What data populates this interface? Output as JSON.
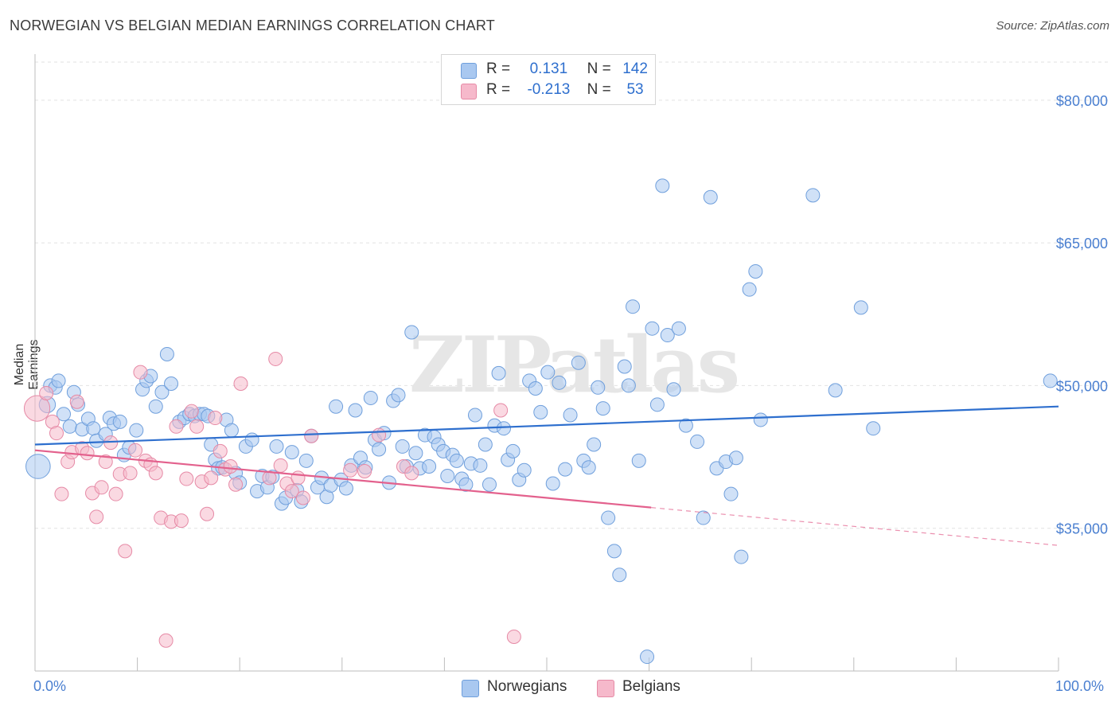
{
  "header": {
    "title": "NORWEGIAN VS BELGIAN MEDIAN EARNINGS CORRELATION CHART",
    "source": "Source: ZipAtlas.com"
  },
  "colors": {
    "blue_fill": "#a9c8f0",
    "blue_stroke": "#6f9fdc",
    "blue_line": "#2e6fce",
    "pink_fill": "#f6b9cb",
    "pink_stroke": "#e68aa6",
    "pink_line": "#e3618d",
    "accent_text": "#4a7fd0"
  },
  "legend_box": {
    "rows": [
      {
        "r_label": "R =",
        "r_value": "0.131",
        "n_label": "N =",
        "n_value": "142"
      },
      {
        "r_label": "R =",
        "r_value": "-0.213",
        "n_label": "N =",
        "n_value": "53"
      }
    ]
  },
  "bottom_legend": {
    "items": [
      {
        "label": "Norwegians"
      },
      {
        "label": "Belgians"
      }
    ]
  },
  "watermark": "ZIPatlas",
  "chart_data": {
    "type": "scatter",
    "title": "NORWEGIAN VS BELGIAN MEDIAN EARNINGS CORRELATION CHART",
    "xlabel": "",
    "ylabel": "Median Earnings",
    "xlim": [
      0,
      100
    ],
    "ylim": [
      20000,
      84000
    ],
    "x_tick_labels": [
      "0.0%",
      "100.0%"
    ],
    "y_ticks": [
      35000,
      50000,
      65000,
      80000
    ],
    "y_tick_labels": [
      "$35,000",
      "$50,000",
      "$65,000",
      "$80,000"
    ],
    "legend_position": "top-center",
    "grid": true,
    "series": [
      {
        "name": "Norwegians",
        "R": 0.131,
        "N": 142,
        "trend": {
          "x0": 0,
          "y0": 43800,
          "x1": 100,
          "y1": 47800,
          "dashed_from": null
        },
        "points": [
          [
            0.3,
            41500,
            1.8
          ],
          [
            1.2,
            48000,
            1.2
          ],
          [
            1.5,
            50000,
            1
          ],
          [
            2.0,
            49800,
            1
          ],
          [
            2.3,
            50500,
            1
          ],
          [
            2.8,
            47000,
            1
          ],
          [
            3.4,
            45700,
            1
          ],
          [
            3.8,
            49300,
            1
          ],
          [
            4.2,
            48000,
            1
          ],
          [
            4.6,
            45400,
            1
          ],
          [
            5.2,
            46500,
            1
          ],
          [
            5.7,
            45500,
            1
          ],
          [
            6.0,
            44200,
            1
          ],
          [
            6.9,
            44900,
            1
          ],
          [
            7.3,
            46600,
            1
          ],
          [
            7.7,
            46000,
            1
          ],
          [
            8.3,
            46200,
            1
          ],
          [
            8.7,
            42700,
            1
          ],
          [
            9.2,
            43500,
            1
          ],
          [
            9.9,
            45300,
            1
          ],
          [
            10.5,
            49600,
            1
          ],
          [
            10.9,
            50500,
            1
          ],
          [
            11.3,
            51000,
            1
          ],
          [
            11.8,
            47800,
            1
          ],
          [
            12.4,
            49300,
            1
          ],
          [
            12.9,
            53300,
            1
          ],
          [
            13.3,
            50200,
            1
          ],
          [
            14.1,
            46200,
            1
          ],
          [
            14.6,
            46600,
            1
          ],
          [
            15.1,
            47000,
            1
          ],
          [
            15.6,
            46800,
            1
          ],
          [
            16.1,
            47000,
            1
          ],
          [
            16.5,
            47000,
            1
          ],
          [
            16.9,
            46800,
            1
          ],
          [
            17.2,
            43800,
            1
          ],
          [
            17.6,
            42200,
            1
          ],
          [
            17.9,
            41300,
            1
          ],
          [
            18.3,
            41400,
            1
          ],
          [
            18.7,
            46400,
            1
          ],
          [
            19.2,
            45300,
            1
          ],
          [
            19.6,
            40800,
            1
          ],
          [
            20.0,
            39800,
            1
          ],
          [
            20.6,
            43600,
            1
          ],
          [
            21.2,
            44300,
            1
          ],
          [
            21.7,
            38900,
            1
          ],
          [
            22.2,
            40500,
            1
          ],
          [
            22.7,
            39300,
            1
          ],
          [
            23.2,
            40400,
            1
          ],
          [
            23.6,
            43600,
            1
          ],
          [
            24.1,
            37600,
            1
          ],
          [
            24.5,
            38200,
            1
          ],
          [
            25.1,
            43000,
            1
          ],
          [
            25.6,
            39000,
            1
          ],
          [
            26.0,
            37800,
            1
          ],
          [
            26.5,
            42100,
            1
          ],
          [
            27.0,
            44700,
            1
          ],
          [
            27.6,
            39300,
            1
          ],
          [
            28.0,
            40300,
            1
          ],
          [
            28.5,
            38300,
            1
          ],
          [
            28.9,
            39500,
            1
          ],
          [
            29.4,
            47800,
            1
          ],
          [
            29.9,
            40100,
            1
          ],
          [
            30.4,
            39200,
            1
          ],
          [
            30.9,
            41600,
            1
          ],
          [
            31.3,
            47400,
            1
          ],
          [
            31.8,
            42400,
            1
          ],
          [
            32.3,
            41400,
            1
          ],
          [
            32.8,
            48700,
            1
          ],
          [
            33.2,
            44300,
            1
          ],
          [
            33.6,
            43300,
            1
          ],
          [
            34.1,
            45000,
            1
          ],
          [
            34.6,
            39800,
            1
          ],
          [
            35.0,
            48400,
            1
          ],
          [
            35.5,
            49000,
            1
          ],
          [
            35.9,
            43600,
            1
          ],
          [
            36.3,
            41500,
            1
          ],
          [
            36.8,
            55600,
            1
          ],
          [
            37.2,
            42900,
            1
          ],
          [
            37.6,
            41300,
            1
          ],
          [
            38.1,
            44800,
            1
          ],
          [
            38.5,
            41500,
            1
          ],
          [
            39.0,
            44600,
            1
          ],
          [
            39.4,
            43800,
            1
          ],
          [
            39.9,
            43100,
            1
          ],
          [
            40.3,
            40500,
            1
          ],
          [
            40.8,
            42700,
            1
          ],
          [
            41.2,
            42100,
            1
          ],
          [
            41.7,
            40200,
            1
          ],
          [
            42.1,
            39600,
            1
          ],
          [
            42.6,
            41800,
            1
          ],
          [
            43.0,
            46900,
            1
          ],
          [
            43.5,
            41600,
            1
          ],
          [
            44.0,
            43800,
            1
          ],
          [
            44.4,
            39600,
            1
          ],
          [
            44.9,
            45800,
            1
          ],
          [
            45.3,
            51300,
            1
          ],
          [
            45.8,
            45500,
            1
          ],
          [
            46.2,
            42200,
            1
          ],
          [
            46.7,
            43100,
            1
          ],
          [
            47.3,
            40100,
            1
          ],
          [
            47.8,
            41100,
            1
          ],
          [
            48.3,
            50500,
            1
          ],
          [
            48.9,
            49700,
            1
          ],
          [
            49.4,
            47200,
            1
          ],
          [
            50.1,
            51400,
            1
          ],
          [
            50.6,
            39700,
            1
          ],
          [
            51.2,
            50300,
            1
          ],
          [
            51.8,
            41200,
            1
          ],
          [
            52.3,
            46900,
            1
          ],
          [
            53.1,
            52400,
            1
          ],
          [
            53.6,
            42100,
            1
          ],
          [
            54.1,
            41400,
            1
          ],
          [
            54.6,
            43800,
            1
          ],
          [
            55.0,
            49800,
            1
          ],
          [
            55.5,
            47600,
            1
          ],
          [
            56.0,
            36100,
            1
          ],
          [
            56.6,
            32600,
            1
          ],
          [
            57.1,
            30100,
            1
          ],
          [
            57.6,
            52000,
            1
          ],
          [
            58.0,
            50000,
            1
          ],
          [
            58.4,
            58300,
            1
          ],
          [
            59.0,
            42100,
            1
          ],
          [
            59.8,
            21500,
            1
          ],
          [
            60.3,
            56000,
            1
          ],
          [
            60.8,
            48000,
            1
          ],
          [
            61.3,
            71000,
            1
          ],
          [
            61.8,
            55300,
            1
          ],
          [
            62.4,
            49600,
            1
          ],
          [
            62.9,
            56000,
            1
          ],
          [
            63.6,
            45800,
            1
          ],
          [
            64.7,
            44100,
            1
          ],
          [
            65.3,
            36100,
            1
          ],
          [
            66.0,
            69800,
            1
          ],
          [
            66.6,
            41300,
            1
          ],
          [
            67.5,
            42000,
            1
          ],
          [
            68.0,
            38600,
            1
          ],
          [
            68.5,
            42400,
            1
          ],
          [
            69.0,
            32000,
            1
          ],
          [
            69.8,
            60100,
            1
          ],
          [
            70.4,
            62000,
            1
          ],
          [
            70.9,
            46400,
            1
          ],
          [
            76.0,
            70000,
            1
          ],
          [
            78.2,
            49500,
            1
          ],
          [
            80.7,
            58200,
            1
          ],
          [
            81.9,
            45500,
            1
          ],
          [
            99.2,
            50500,
            1
          ]
        ]
      },
      {
        "name": "Belgians",
        "R": -0.213,
        "N": 53,
        "trend": {
          "x0": 0,
          "y0": 43200,
          "x1": 100,
          "y1": 33200,
          "dashed_from": 60.2
        },
        "points": [
          [
            0.2,
            47600,
            1.9
          ],
          [
            1.1,
            49200,
            1
          ],
          [
            1.7,
            46200,
            1
          ],
          [
            2.1,
            45000,
            1
          ],
          [
            2.6,
            38600,
            1
          ],
          [
            3.2,
            42000,
            1
          ],
          [
            3.6,
            43000,
            1
          ],
          [
            4.1,
            48300,
            1
          ],
          [
            4.6,
            43400,
            1
          ],
          [
            5.1,
            42900,
            1
          ],
          [
            5.6,
            38700,
            1
          ],
          [
            6.0,
            36200,
            1
          ],
          [
            6.5,
            39300,
            1
          ],
          [
            6.9,
            42000,
            1
          ],
          [
            7.4,
            44000,
            1
          ],
          [
            7.9,
            38600,
            1
          ],
          [
            8.3,
            40700,
            1
          ],
          [
            8.8,
            32600,
            1
          ],
          [
            9.3,
            40800,
            1
          ],
          [
            9.8,
            43200,
            1
          ],
          [
            10.3,
            51400,
            1
          ],
          [
            10.8,
            42100,
            1
          ],
          [
            11.3,
            41700,
            1
          ],
          [
            11.8,
            40800,
            1
          ],
          [
            12.3,
            36100,
            1
          ],
          [
            12.8,
            23200,
            1
          ],
          [
            13.3,
            35700,
            1
          ],
          [
            13.8,
            45700,
            1
          ],
          [
            14.3,
            35800,
            1
          ],
          [
            14.8,
            40200,
            1
          ],
          [
            15.3,
            47300,
            1
          ],
          [
            15.8,
            45700,
            1
          ],
          [
            16.3,
            39900,
            1
          ],
          [
            16.8,
            36500,
            1
          ],
          [
            17.2,
            40300,
            1
          ],
          [
            17.6,
            46600,
            1
          ],
          [
            18.1,
            43100,
            1
          ],
          [
            18.6,
            41200,
            1
          ],
          [
            19.1,
            41500,
            1
          ],
          [
            19.6,
            39600,
            1
          ],
          [
            20.1,
            50200,
            1
          ],
          [
            22.9,
            40300,
            1
          ],
          [
            23.5,
            52800,
            1
          ],
          [
            24.0,
            41600,
            1
          ],
          [
            24.6,
            39700,
            1
          ],
          [
            25.1,
            38900,
            1
          ],
          [
            25.7,
            40300,
            1
          ],
          [
            26.2,
            38200,
            1
          ],
          [
            27.0,
            44700,
            1
          ],
          [
            30.8,
            41100,
            1
          ],
          [
            32.2,
            41000,
            1
          ],
          [
            33.6,
            44800,
            1
          ],
          [
            36.0,
            41500,
            1
          ],
          [
            36.8,
            40800,
            1
          ],
          [
            45.5,
            47400,
            1
          ],
          [
            46.8,
            23600,
            1
          ]
        ]
      }
    ]
  }
}
